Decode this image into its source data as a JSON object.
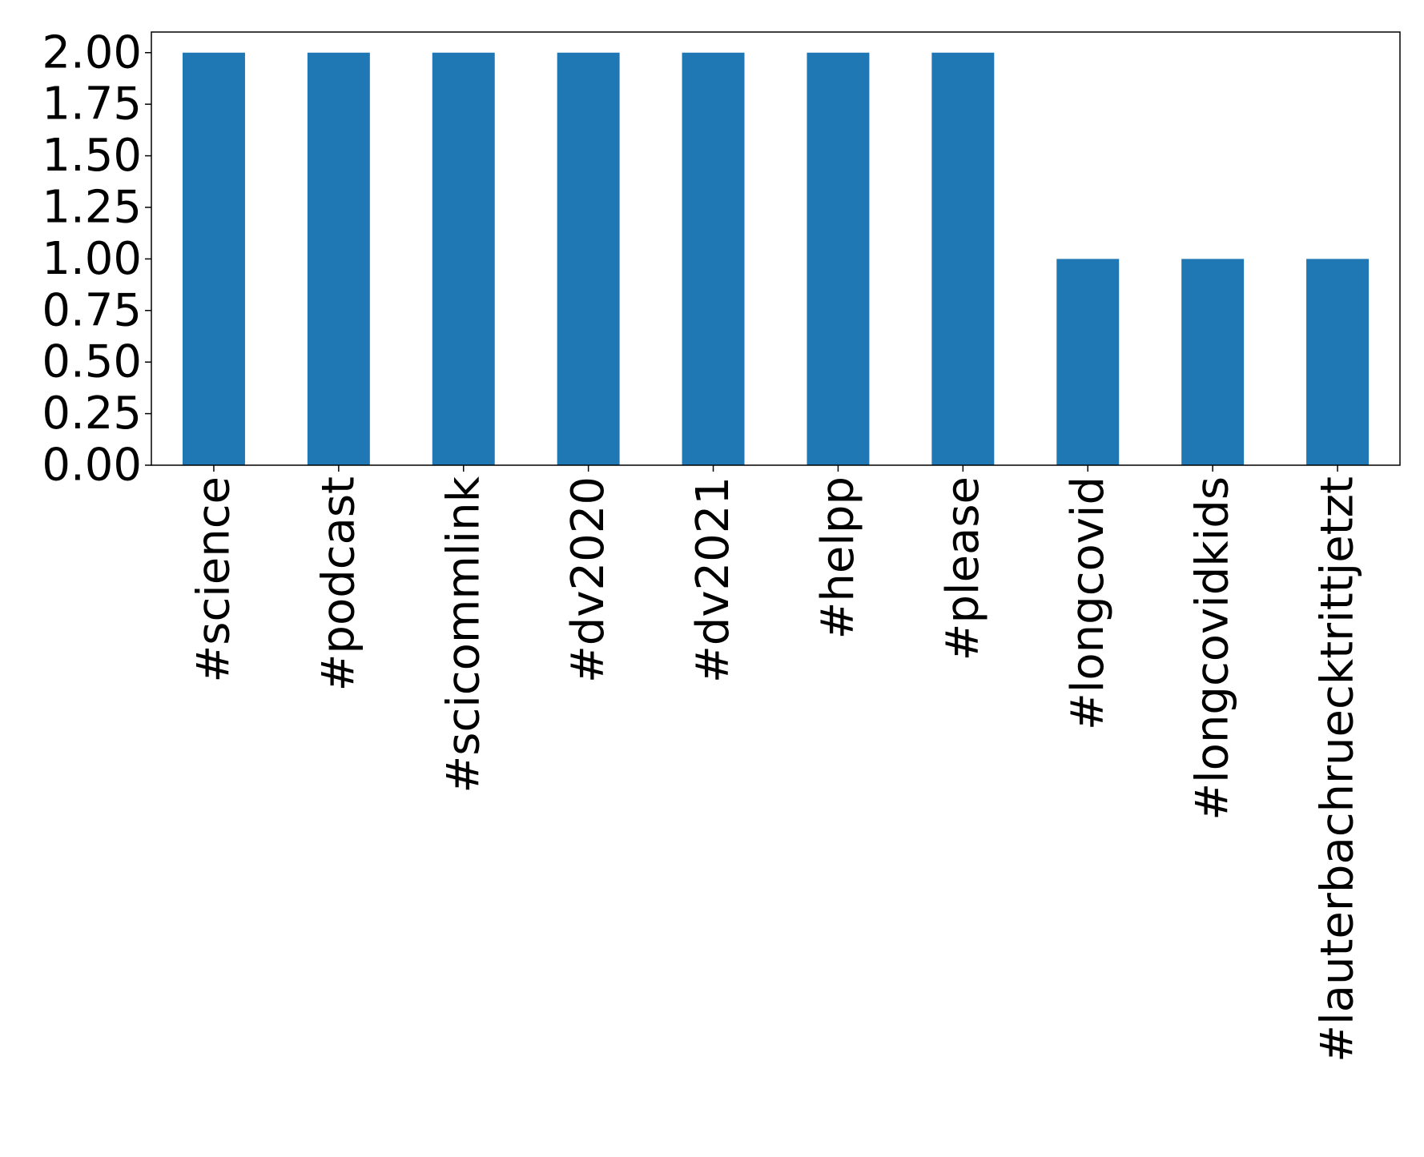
{
  "chart_data": {
    "type": "bar",
    "categories": [
      "#science",
      "#podcast",
      "#scicommlink",
      "#dv2020",
      "#dv2021",
      "#helpp",
      "#please",
      "#longcovid",
      "#longcovidkids",
      "#lauterbachruecktrittjetzt"
    ],
    "values": [
      2,
      2,
      2,
      2,
      2,
      2,
      2,
      1,
      1,
      1
    ],
    "color": "#1f77b4",
    "ylim": [
      0,
      2.1
    ],
    "yticks": [
      {
        "value": 0,
        "label": "0.00"
      },
      {
        "value": 0.25,
        "label": "0.25"
      },
      {
        "value": 0.5,
        "label": "0.50"
      },
      {
        "value": 0.75,
        "label": "0.75"
      },
      {
        "value": 1,
        "label": "1.00"
      },
      {
        "value": 1.25,
        "label": "1.25"
      },
      {
        "value": 1.5,
        "label": "1.50"
      },
      {
        "value": 1.75,
        "label": "1.75"
      },
      {
        "value": 2,
        "label": "2.00"
      }
    ],
    "grid": false
  }
}
